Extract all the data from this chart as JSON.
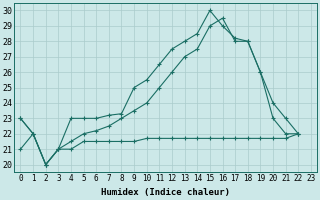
{
  "title": "",
  "xlabel": "Humidex (Indice chaleur)",
  "bg_color": "#cce8e8",
  "line_color": "#1a6e64",
  "xlim": [
    -0.5,
    23.5
  ],
  "ylim": [
    19.5,
    30.5
  ],
  "xticks": [
    0,
    1,
    2,
    3,
    4,
    5,
    6,
    7,
    8,
    9,
    10,
    11,
    12,
    13,
    14,
    15,
    16,
    17,
    18,
    19,
    20,
    21,
    22,
    23
  ],
  "yticks": [
    20,
    21,
    22,
    23,
    24,
    25,
    26,
    27,
    28,
    29,
    30
  ],
  "grid_color": "#aacccc",
  "line1_x": [
    0,
    1,
    2,
    3,
    4,
    5,
    6,
    7,
    8,
    9,
    10,
    11,
    12,
    13,
    14,
    15,
    16,
    17,
    18,
    19,
    20,
    21,
    22
  ],
  "line1_y": [
    23,
    22,
    20,
    21,
    23,
    23,
    23,
    23.2,
    23.3,
    25,
    25.5,
    26.5,
    27.5,
    28,
    28.5,
    30,
    29,
    28.2,
    28,
    26,
    24,
    23,
    22
  ],
  "line2_x": [
    0,
    1,
    2,
    3,
    4,
    5,
    6,
    7,
    8,
    9,
    10,
    11,
    12,
    13,
    14,
    15,
    16,
    17,
    18,
    19,
    20,
    21,
    22
  ],
  "line2_y": [
    23,
    22,
    20,
    21,
    21.5,
    22,
    22.2,
    22.5,
    23,
    23.5,
    24,
    25,
    26,
    27,
    27.5,
    29,
    29.5,
    28,
    28,
    26,
    23,
    22,
    22
  ],
  "line3_x": [
    0,
    1,
    2,
    3,
    4,
    5,
    6,
    7,
    8,
    9,
    10,
    11,
    12,
    13,
    14,
    15,
    16,
    17,
    18,
    19,
    20,
    21,
    22
  ],
  "line3_y": [
    21,
    22,
    20,
    21,
    21,
    21.5,
    21.5,
    21.5,
    21.5,
    21.5,
    21.7,
    21.7,
    21.7,
    21.7,
    21.7,
    21.7,
    21.7,
    21.7,
    21.7,
    21.7,
    21.7,
    21.7,
    22
  ],
  "marker": "+",
  "markersize": 3,
  "linewidth": 0.8,
  "xlabel_fontsize": 6.5,
  "tick_fontsize": 5.5,
  "ytick_fontsize": 6
}
